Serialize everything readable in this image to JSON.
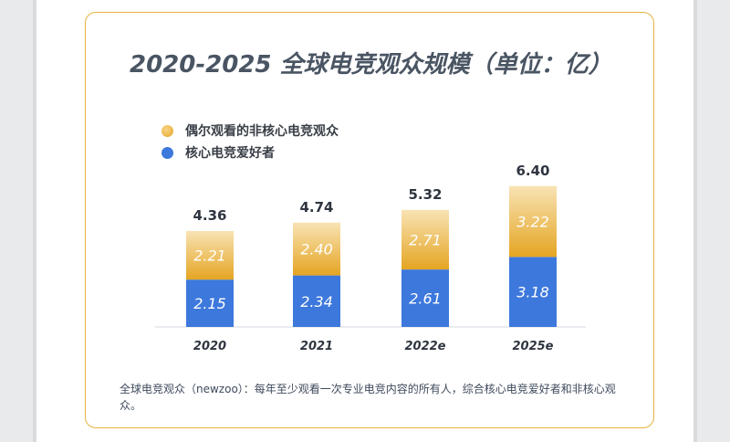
{
  "chart_data": {
    "type": "bar",
    "stacked": true,
    "title": "2020-2025 全球电竞观众规模（单位：亿）",
    "categories": [
      "2020",
      "2021",
      "2022e",
      "2025e"
    ],
    "series": [
      {
        "name": "核心电竞爱好者",
        "values": [
          2.15,
          2.34,
          2.61,
          3.18
        ],
        "value_labels": [
          "2.15",
          "2.34",
          "2.61",
          "3.18"
        ],
        "color": "#3d78dc"
      },
      {
        "name": "偶尔观看的非核心电竞观众",
        "values": [
          2.21,
          2.4,
          2.71,
          3.22
        ],
        "value_labels": [
          "2.21",
          "2.40",
          "2.71",
          "3.22"
        ],
        "color": "#e8ad34"
      }
    ],
    "totals": [
      4.36,
      4.74,
      5.32,
      6.4
    ],
    "total_labels": [
      "4.36",
      "4.74",
      "5.32",
      "6.40"
    ],
    "xlabel": "",
    "ylabel": "",
    "ylim": [
      0,
      6.8
    ],
    "legend_position": "top-left",
    "grid": false
  },
  "legend": {
    "items": [
      {
        "label": "偶尔观看的非核心电竞观众",
        "icon": "gold-dot-icon",
        "color": "#e8ad34"
      },
      {
        "label": "核心电竞爱好者",
        "icon": "blue-dot-icon",
        "color": "#3d78dc"
      }
    ]
  },
  "footnote": "全球电竞观众（newzoo）：每年至少观看一次专业电竞内容的所有人，综合核心电竞爱好者和非核心观众。",
  "colors": {
    "card_border": "#e8b23c",
    "title": "#4a5563",
    "core_blue": "#3d78dc",
    "casual_gold": "#e8ad34"
  }
}
